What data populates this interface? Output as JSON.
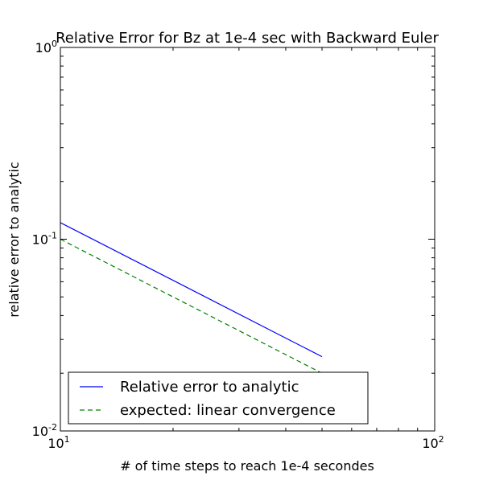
{
  "chart_data": {
    "type": "line",
    "title": "Relative Error for Bz at 1e-4 sec with Backward Euler",
    "xlabel": "# of time steps to reach 1e-4 secondes",
    "ylabel": "relative error to analytic",
    "xscale": "log",
    "yscale": "log",
    "xlim": [
      10,
      100
    ],
    "ylim": [
      0.01,
      1
    ],
    "x_major_ticks": [
      10,
      100
    ],
    "y_major_ticks": [
      0.01,
      0.1,
      1
    ],
    "x_tick_labels": [
      {
        "base": "10",
        "exp": "1"
      },
      {
        "base": "10",
        "exp": "2"
      }
    ],
    "y_tick_labels": [
      {
        "base": "10",
        "exp": "-2"
      },
      {
        "base": "10",
        "exp": "-1"
      },
      {
        "base": "10",
        "exp": "0"
      }
    ],
    "grid": false,
    "legend": "lower-left",
    "series": [
      {
        "name": "Relative error to analytic",
        "color": "#0000ff",
        "style": "solid",
        "x": [
          10,
          50
        ],
        "y": [
          0.122,
          0.0244
        ]
      },
      {
        "name": "expected: linear convergence",
        "color": "#008000",
        "style": "dashed",
        "x": [
          10,
          50
        ],
        "y": [
          0.1,
          0.02
        ]
      }
    ]
  }
}
